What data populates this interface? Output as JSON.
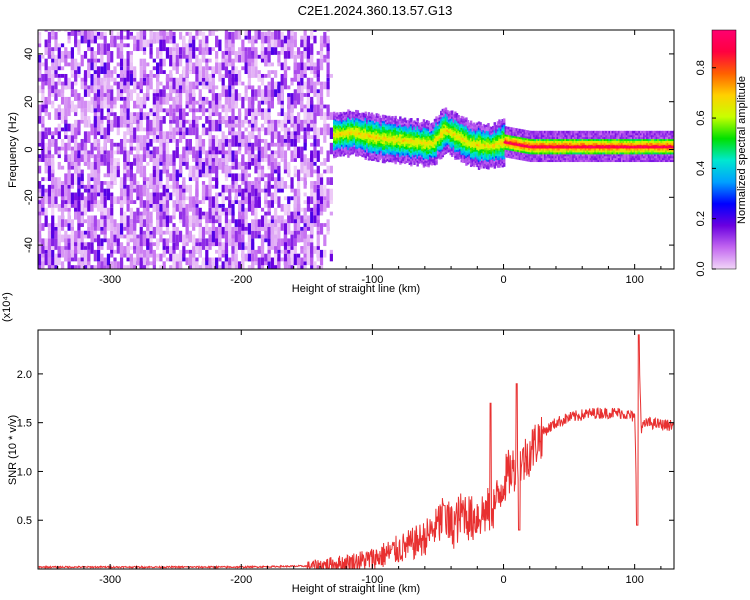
{
  "title": "C2E1.2024.360.13.57.G13",
  "chart_data": [
    {
      "type": "heatmap",
      "xlabel": "Height of straight line (km)",
      "ylabel": "Frequency (Hz)",
      "xlim": [
        -355,
        130
      ],
      "ylim": [
        -50,
        50
      ],
      "xticks": [
        -300,
        -200,
        -100,
        0,
        100
      ],
      "yticks": [
        -40,
        -20,
        0,
        20,
        40
      ],
      "x_tick_labels": [
        "-300",
        "-200",
        "-100",
        "0",
        "100"
      ],
      "y_tick_labels": [
        "-40",
        "-20",
        "0",
        "20",
        "40"
      ],
      "colorbar": {
        "label": "Normalized spectral amplitude",
        "range": [
          0,
          0.95
        ],
        "ticks": [
          0.0,
          0.2,
          0.4,
          0.6,
          0.8
        ],
        "tick_labels": [
          "0.0",
          "0.2",
          "0.4",
          "0.6",
          "0.8"
        ],
        "colors": [
          "#f2d6f8",
          "#c266f0",
          "#6a00e0",
          "#0000ff",
          "#00a0ff",
          "#00e8d0",
          "#00e000",
          "#c8ff00",
          "#ffd000",
          "#ff6000",
          "#ff0040",
          "#ff0070"
        ]
      },
      "regions": [
        {
          "name": "scattered noise",
          "x": [
            -355,
            -130
          ],
          "freq": [
            -50,
            50
          ],
          "amplitude": [
            0.0,
            0.2
          ]
        },
        {
          "name": "signal band",
          "x": [
            -130,
            130
          ],
          "freq": [
            -5,
            10
          ],
          "amplitude": [
            0.2,
            0.95
          ]
        }
      ],
      "band_center": [
        {
          "x": -128,
          "f": 6
        },
        {
          "x": -115,
          "f": 7
        },
        {
          "x": -100,
          "f": 5
        },
        {
          "x": -85,
          "f": 4
        },
        {
          "x": -70,
          "f": 3
        },
        {
          "x": -55,
          "f": 2
        },
        {
          "x": -45,
          "f": 8
        },
        {
          "x": -35,
          "f": 5
        },
        {
          "x": -25,
          "f": 2
        },
        {
          "x": -10,
          "f": 1
        },
        {
          "x": 0,
          "f": 3
        },
        {
          "x": 20,
          "f": 1
        },
        {
          "x": 60,
          "f": 1
        },
        {
          "x": 100,
          "f": 1
        },
        {
          "x": 130,
          "f": 1
        }
      ]
    },
    {
      "type": "line",
      "xlabel": "Height of straight line (km)",
      "ylabel": "SNR (10 * v/v)",
      "y_multiplier_label": "(x10⁴)",
      "xlim": [
        -355,
        130
      ],
      "ylim": [
        0,
        2.45
      ],
      "xticks": [
        -300,
        -200,
        -100,
        0,
        100
      ],
      "yticks": [
        0.5,
        1.0,
        1.5,
        2.0
      ],
      "x_tick_labels": [
        "-300",
        "-200",
        "-100",
        "0",
        "100"
      ],
      "y_tick_labels": [
        "0.5",
        "1.0",
        "1.5",
        "2.0"
      ],
      "color": "#e83030",
      "x": [
        -355,
        -300,
        -250,
        -200,
        -150,
        -120,
        -100,
        -90,
        -80,
        -70,
        -60,
        -50,
        -45,
        -40,
        -35,
        -30,
        -25,
        -20,
        -15,
        -10,
        -5,
        0,
        5,
        10,
        15,
        20,
        25,
        30,
        40,
        50,
        60,
        70,
        80,
        90,
        95,
        100,
        102,
        103,
        105,
        110,
        120,
        130
      ],
      "y": [
        0.02,
        0.02,
        0.02,
        0.02,
        0.03,
        0.06,
        0.1,
        0.15,
        0.2,
        0.25,
        0.32,
        0.45,
        0.55,
        0.42,
        0.5,
        0.6,
        0.5,
        0.55,
        0.58,
        0.6,
        0.7,
        0.9,
        1.0,
        1.05,
        1.1,
        1.2,
        1.3,
        1.4,
        1.5,
        1.55,
        1.58,
        1.6,
        1.6,
        1.6,
        1.58,
        1.55,
        0.5,
        2.4,
        1.45,
        1.5,
        1.48,
        1.47
      ],
      "annotations": {
        "spikes": [
          {
            "x": -45,
            "y": 0.65
          },
          {
            "x": -10,
            "y": 1.7
          },
          {
            "x": 10,
            "y": 1.9
          },
          {
            "x": 103,
            "y": 2.4
          }
        ],
        "dips": [
          {
            "x": 12,
            "y": 0.4
          },
          {
            "x": 102,
            "y": 0.45
          }
        ]
      }
    }
  ]
}
